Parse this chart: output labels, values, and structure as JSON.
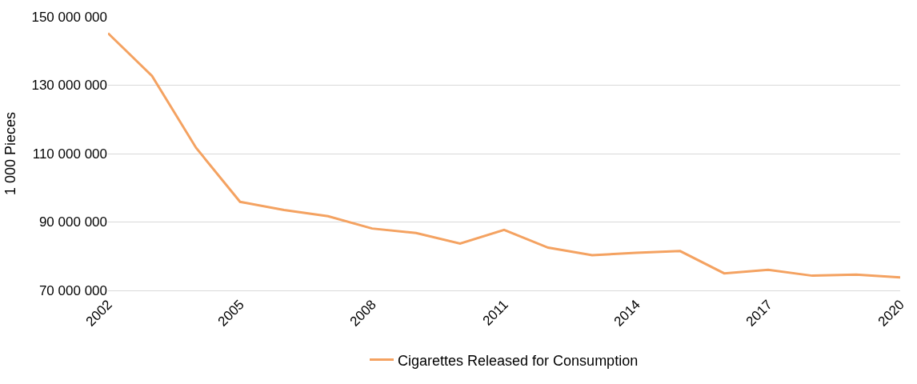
{
  "chart_data": {
    "type": "line",
    "ylabel": "1 000 Pieces",
    "x": [
      2002,
      2003,
      2004,
      2005,
      2006,
      2007,
      2008,
      2009,
      2010,
      2011,
      2012,
      2013,
      2014,
      2015,
      2016,
      2017,
      2018,
      2019,
      2020
    ],
    "series": [
      {
        "name": "Cigarettes Released for Consumption",
        "color": "#f4a261",
        "values": [
          145200000,
          132700000,
          111700000,
          95900000,
          93500000,
          91700000,
          88100000,
          86800000,
          83700000,
          87700000,
          82500000,
          80300000,
          81000000,
          81500000,
          75000000,
          76000000,
          74300000,
          74600000,
          73800000
        ]
      }
    ],
    "xlim": [
      2002,
      2020
    ],
    "xticks": [
      2002,
      2005,
      2008,
      2011,
      2014,
      2017,
      2020
    ],
    "ylim": [
      70000000,
      150000000
    ],
    "yticks": [
      {
        "value": 70000000,
        "label": "70 000 000"
      },
      {
        "value": 90000000,
        "label": "90 000 000"
      },
      {
        "value": 110000000,
        "label": "110 000 000"
      },
      {
        "value": 130000000,
        "label": "130 000 000"
      },
      {
        "value": 150000000,
        "label": "150 000 000"
      }
    ],
    "grid": "y",
    "legend": "bottom",
    "marker": "none",
    "line_style": "solid"
  }
}
